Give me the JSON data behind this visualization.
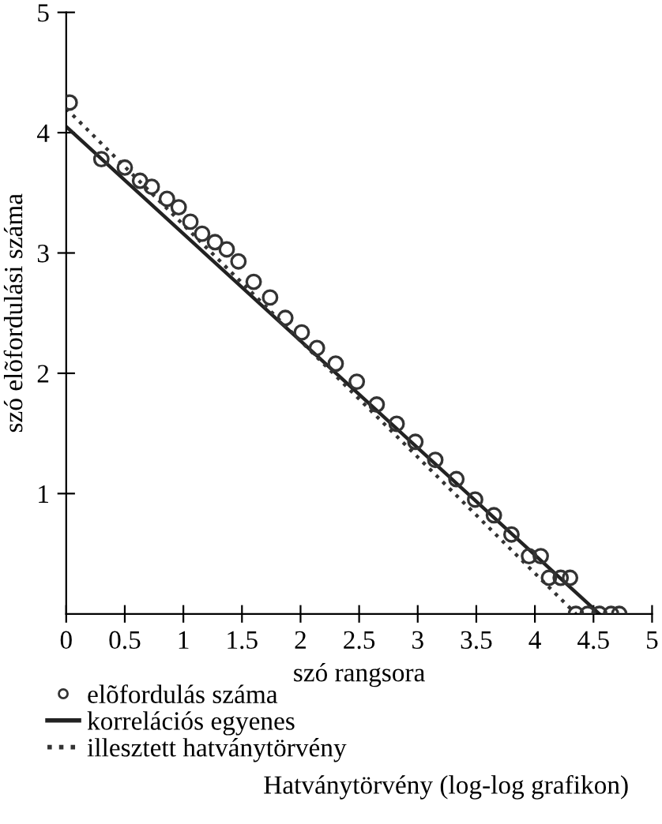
{
  "chart_data": {
    "type": "scatter",
    "title": "Hatványtörvény (log-log grafikon)",
    "xlabel": "szó rangsora",
    "ylabel": "szó elõfordulási száma",
    "xlim": [
      0,
      5
    ],
    "ylim": [
      0,
      5
    ],
    "xticks": [
      0,
      0.5,
      1,
      1.5,
      2,
      2.5,
      3,
      3.5,
      4,
      4.5,
      5
    ],
    "yticks": [
      1,
      2,
      3,
      4,
      5
    ],
    "grid": false,
    "legend": "bottom",
    "series": [
      {
        "name": "elõfordulás száma",
        "marker": "circle",
        "color": "#333333",
        "x": [
          0.03,
          0.3,
          0.5,
          0.63,
          0.73,
          0.86,
          0.96,
          1.06,
          1.16,
          1.27,
          1.37,
          1.47,
          1.6,
          1.74,
          1.87,
          2.01,
          2.14,
          2.3,
          2.48,
          2.65,
          2.82,
          2.98,
          3.15,
          3.33,
          3.49,
          3.65,
          3.8,
          3.95,
          4.05,
          4.12,
          4.22,
          4.3,
          4.35,
          4.45,
          4.55,
          4.65,
          4.72
        ],
        "values": [
          4.25,
          3.78,
          3.71,
          3.6,
          3.55,
          3.45,
          3.38,
          3.26,
          3.16,
          3.09,
          3.03,
          2.93,
          2.76,
          2.63,
          2.46,
          2.34,
          2.21,
          2.08,
          1.93,
          1.74,
          1.58,
          1.43,
          1.28,
          1.12,
          0.95,
          0.82,
          0.66,
          0.48,
          0.48,
          0.3,
          0.3,
          0.3,
          0,
          0,
          0,
          0,
          0
        ]
      },
      {
        "name": "korrelációs egyenes",
        "type": "line",
        "line_style": "solid",
        "color": "#222222",
        "x": [
          0,
          4.55
        ],
        "values": [
          4.05,
          0
        ]
      },
      {
        "name": "illesztett hatványtörvény",
        "type": "line",
        "line_style": "dotted",
        "color": "#333333",
        "x": [
          0,
          4.35
        ],
        "values": [
          4.2,
          0
        ]
      }
    ]
  }
}
